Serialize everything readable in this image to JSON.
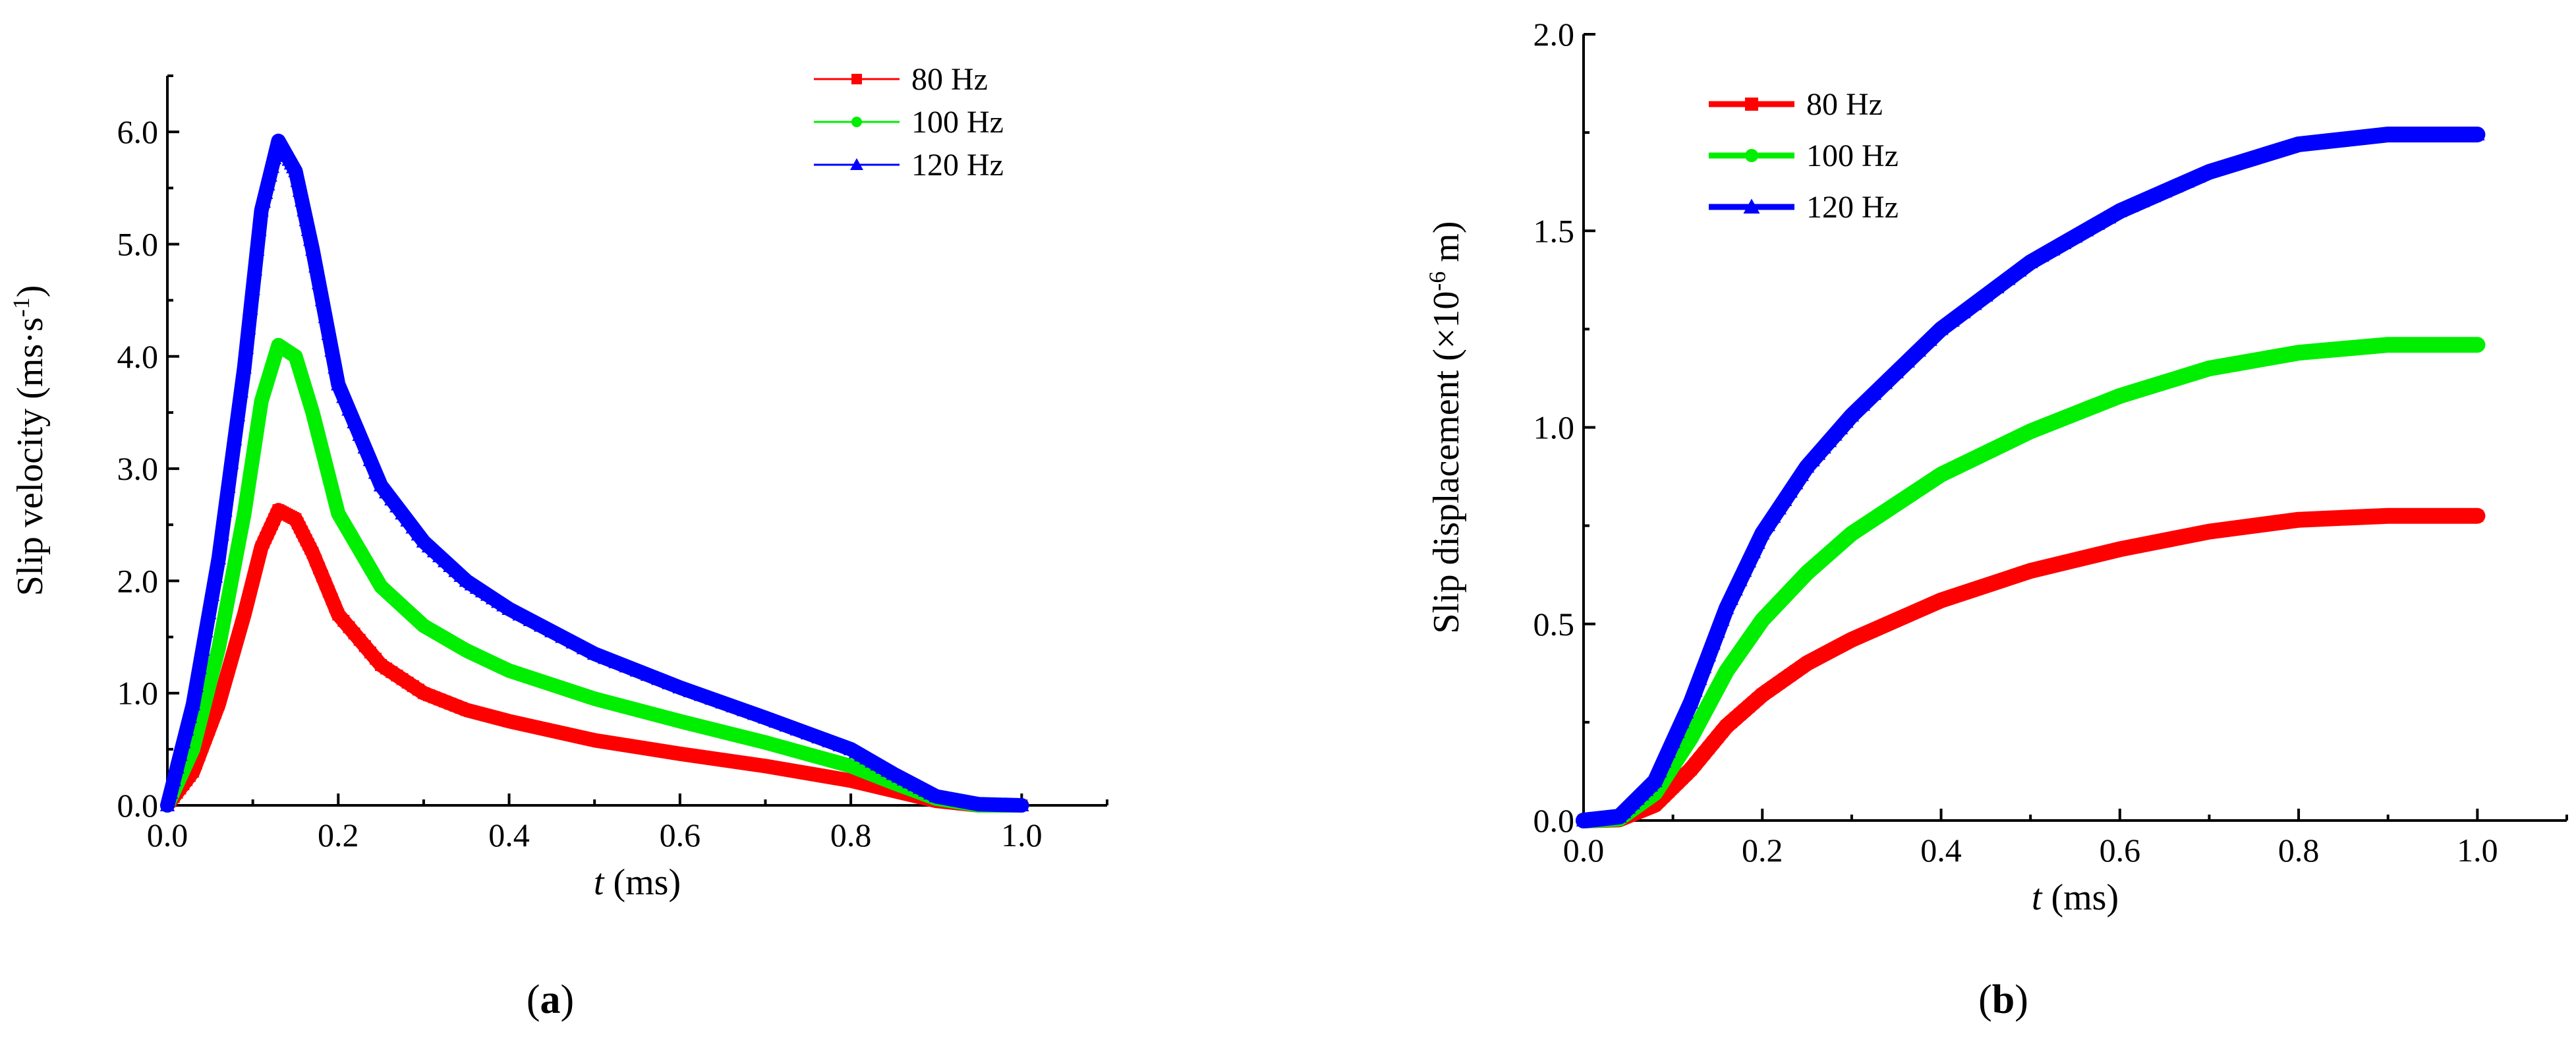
{
  "figure": {
    "captions": [
      {
        "open": "(",
        "letter": "a",
        "close": ")"
      },
      {
        "open": "(",
        "letter": "b",
        "close": ")"
      }
    ]
  },
  "colors": {
    "80 Hz": "#ff0000",
    "100 Hz": "#00ee00",
    "120 Hz": "#0000ff"
  },
  "chart_data": [
    {
      "type": "line",
      "panel": "a",
      "title": "",
      "xlabel_italic": "t",
      "xlabel_rest": " (ms)",
      "ylabel_main": "Slip velocity (ms·s",
      "ylabel_sup": "-1",
      "ylabel_close": ")",
      "xlim": [
        0.0,
        1.1
      ],
      "ylim": [
        0.0,
        6.5
      ],
      "xticks": [
        "0.0",
        "0.2",
        "0.4",
        "0.6",
        "0.8",
        "1.0"
      ],
      "xtick_values": [
        0.0,
        0.2,
        0.4,
        0.6,
        0.8,
        1.0
      ],
      "yticks": [
        "0.0",
        "1.0",
        "2.0",
        "3.0",
        "4.0",
        "5.0",
        "6.0"
      ],
      "ytick_values": [
        0,
        1,
        2,
        3,
        4,
        5,
        6
      ],
      "legend_position": "top-right",
      "legend_style": "thin",
      "series": [
        {
          "name": "80 Hz",
          "marker": "square",
          "x": [
            0.0,
            0.03,
            0.06,
            0.09,
            0.11,
            0.13,
            0.15,
            0.17,
            0.2,
            0.25,
            0.3,
            0.35,
            0.4,
            0.5,
            0.6,
            0.7,
            0.8,
            0.85,
            0.9,
            0.95,
            1.0
          ],
          "y": [
            0.0,
            0.3,
            0.9,
            1.7,
            2.3,
            2.63,
            2.55,
            2.25,
            1.7,
            1.25,
            1.0,
            0.85,
            0.75,
            0.58,
            0.46,
            0.35,
            0.22,
            0.13,
            0.04,
            0.0,
            0.0
          ]
        },
        {
          "name": "100 Hz",
          "marker": "circle",
          "x": [
            0.0,
            0.03,
            0.06,
            0.09,
            0.11,
            0.13,
            0.15,
            0.17,
            0.2,
            0.25,
            0.3,
            0.35,
            0.4,
            0.5,
            0.6,
            0.7,
            0.8,
            0.85,
            0.9,
            0.95,
            1.0
          ],
          "y": [
            0.0,
            0.5,
            1.4,
            2.6,
            3.6,
            4.1,
            4.0,
            3.5,
            2.6,
            1.95,
            1.6,
            1.38,
            1.2,
            0.95,
            0.75,
            0.56,
            0.35,
            0.2,
            0.06,
            0.0,
            0.0
          ]
        },
        {
          "name": "120 Hz",
          "marker": "triangle",
          "x": [
            0.0,
            0.03,
            0.06,
            0.09,
            0.11,
            0.13,
            0.15,
            0.17,
            0.2,
            0.25,
            0.3,
            0.35,
            0.4,
            0.5,
            0.6,
            0.7,
            0.8,
            0.85,
            0.9,
            0.95,
            1.0
          ],
          "y": [
            0.0,
            0.9,
            2.2,
            3.9,
            5.3,
            5.92,
            5.65,
            4.95,
            3.75,
            2.85,
            2.35,
            2.0,
            1.75,
            1.35,
            1.05,
            0.78,
            0.5,
            0.28,
            0.08,
            0.01,
            0.0
          ]
        }
      ]
    },
    {
      "type": "line",
      "panel": "b",
      "title": "",
      "xlabel_italic": "t",
      "xlabel_rest": " (ms)",
      "ylabel_main": "Slip displacement (×10",
      "ylabel_sup": "-6",
      "ylabel_close": " m)",
      "xlim": [
        0.0,
        1.1
      ],
      "ylim": [
        0.0,
        2.0
      ],
      "xticks": [
        "0.0",
        "0.2",
        "0.4",
        "0.6",
        "0.8",
        "1.0"
      ],
      "xtick_values": [
        0.0,
        0.2,
        0.4,
        0.6,
        0.8,
        1.0
      ],
      "yticks": [
        "0.0",
        "0.5",
        "1.0",
        "1.5",
        "2.0"
      ],
      "ytick_values": [
        0.0,
        0.5,
        1.0,
        1.5,
        2.0
      ],
      "legend_position": "top-left",
      "legend_style": "thick",
      "series": [
        {
          "name": "80 Hz",
          "marker": "square",
          "x": [
            0.0,
            0.04,
            0.08,
            0.12,
            0.16,
            0.2,
            0.25,
            0.3,
            0.4,
            0.5,
            0.6,
            0.7,
            0.8,
            0.9,
            1.0
          ],
          "y": [
            0.0,
            0.003,
            0.04,
            0.13,
            0.24,
            0.32,
            0.4,
            0.46,
            0.56,
            0.635,
            0.69,
            0.735,
            0.765,
            0.775,
            0.775
          ]
        },
        {
          "name": "100 Hz",
          "marker": "circle",
          "x": [
            0.0,
            0.04,
            0.08,
            0.12,
            0.16,
            0.2,
            0.25,
            0.3,
            0.4,
            0.5,
            0.6,
            0.7,
            0.8,
            0.9,
            1.0
          ],
          "y": [
            0.0,
            0.005,
            0.07,
            0.21,
            0.38,
            0.51,
            0.63,
            0.73,
            0.88,
            0.99,
            1.08,
            1.15,
            1.19,
            1.21,
            1.21
          ]
        },
        {
          "name": "120 Hz",
          "marker": "triangle",
          "x": [
            0.0,
            0.04,
            0.08,
            0.12,
            0.16,
            0.2,
            0.25,
            0.3,
            0.4,
            0.5,
            0.6,
            0.7,
            0.8,
            0.9,
            1.0
          ],
          "y": [
            0.0,
            0.01,
            0.1,
            0.3,
            0.54,
            0.73,
            0.9,
            1.03,
            1.25,
            1.42,
            1.55,
            1.65,
            1.72,
            1.745,
            1.745
          ]
        }
      ]
    }
  ]
}
